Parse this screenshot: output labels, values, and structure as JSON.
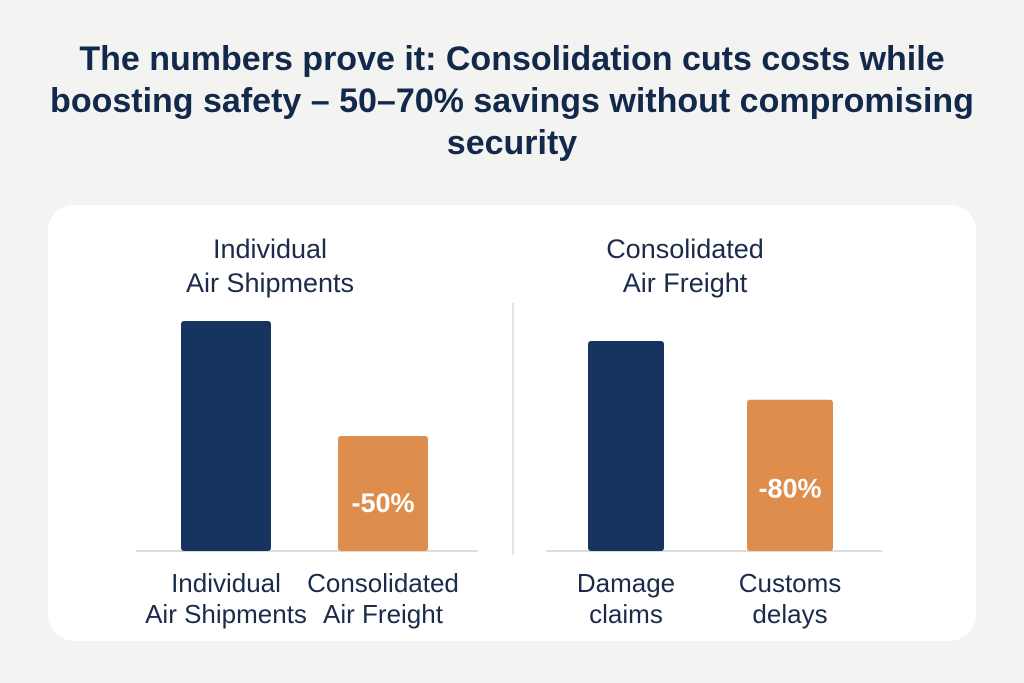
{
  "headline": "The numbers prove it: Consolidation cuts costs while boosting safety – 50–70% savings without compromising security",
  "colors": {
    "navy": "#16345f",
    "orange": "#de8d4c",
    "axis": "#dcdcdc",
    "background": "#f3f3f1",
    "card": "#ffffff"
  },
  "chart_data": [
    {
      "type": "bar",
      "title": "Individual\nAir Shipments",
      "categories": [
        "Individual\nAir Shipments",
        "Consolidated\nAir Freight"
      ],
      "values": [
        100,
        50
      ],
      "data_labels": [
        "",
        "-50%"
      ],
      "bar_colors": [
        "#16345f",
        "#de8d4c"
      ],
      "ylim": [
        0,
        100
      ],
      "grid": false
    },
    {
      "type": "bar",
      "title": "Consolidated\nAir Freight",
      "categories": [
        "Damage\nclaims",
        "Customs\ndelays"
      ],
      "values": [
        100,
        72
      ],
      "data_labels": [
        "",
        "-80%"
      ],
      "bar_colors": [
        "#16345f",
        "#de8d4c"
      ],
      "ylim": [
        0,
        100
      ],
      "grid": false
    }
  ]
}
